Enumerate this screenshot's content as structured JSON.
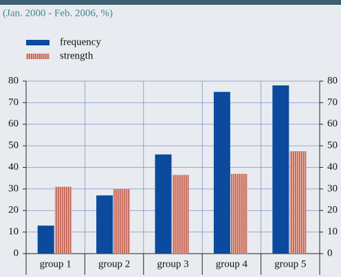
{
  "chart_data": {
    "type": "bar",
    "subtitle": "(Jan. 2000 - Feb. 2006, %)",
    "categories": [
      "group 1",
      "group 2",
      "group 3",
      "group 4",
      "group 5"
    ],
    "series": [
      {
        "name": "frequency",
        "color": "#0b4a9c",
        "values": [
          13,
          27,
          46,
          75,
          78
        ]
      },
      {
        "name": "strength",
        "color": "#c0675a",
        "values": [
          31,
          30,
          36.5,
          37,
          47.5
        ]
      }
    ],
    "ylim": [
      0,
      80
    ],
    "yticks": [
      0,
      10,
      20,
      30,
      40,
      50,
      60,
      70,
      80
    ],
    "y2lim": [
      0,
      80
    ],
    "y2ticks": [
      0,
      10,
      20,
      30,
      40,
      50,
      60,
      70,
      80
    ],
    "grid": true
  }
}
